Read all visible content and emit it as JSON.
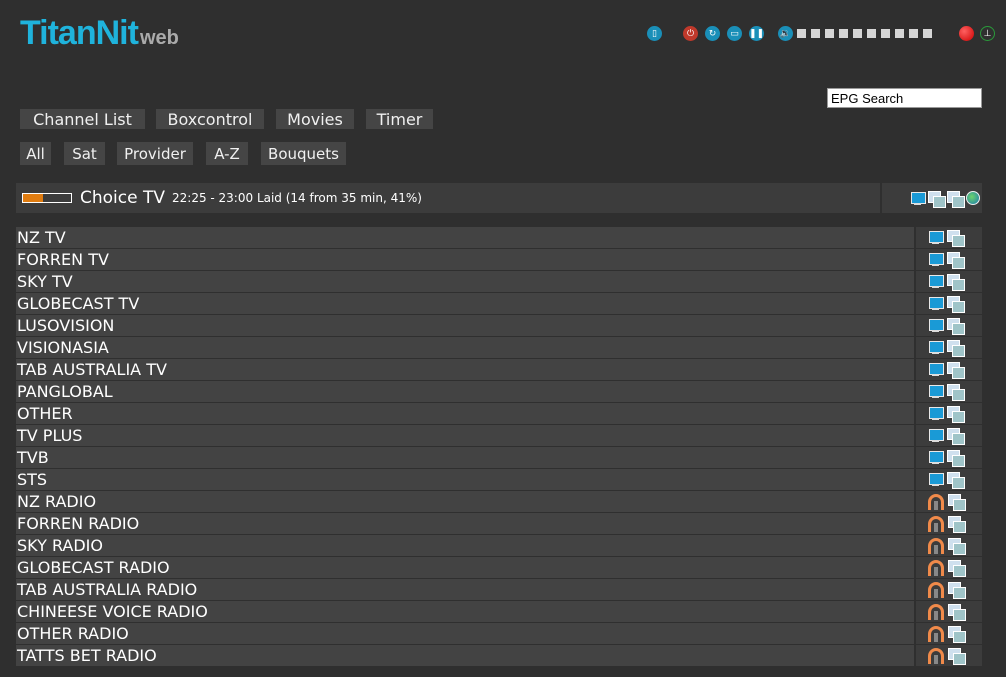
{
  "logo": {
    "main": "TitanNit",
    "suffix": "web"
  },
  "controls": {
    "icons": [
      "remote-icon",
      "power-icon",
      "restart-icon",
      "screen-icon",
      "pause-icon",
      "volume-icon"
    ],
    "volume_steps": 10,
    "record_icon": "record-icon",
    "signal_icon": "signal-icon"
  },
  "epg_search": {
    "value": "EPG Search"
  },
  "nav": {
    "main": [
      "Channel List",
      "Boxcontrol",
      "Movies",
      "Timer"
    ],
    "filters": [
      "All",
      "Sat",
      "Provider",
      "A-Z",
      "Bouquets"
    ]
  },
  "current": {
    "progress_percent": 41,
    "channel": "Choice TV",
    "info": "22:25 - 23:00 Laid (14 from 35 min, 41%)",
    "progress_color": "#e07c10"
  },
  "channels": [
    {
      "name": "NZ TV",
      "type": "tv"
    },
    {
      "name": "FORREN TV",
      "type": "tv"
    },
    {
      "name": "SKY TV",
      "type": "tv"
    },
    {
      "name": "GLOBECAST TV",
      "type": "tv"
    },
    {
      "name": "LUSOVISION",
      "type": "tv"
    },
    {
      "name": "VISIONASIA",
      "type": "tv"
    },
    {
      "name": "TAB AUSTRALIA TV",
      "type": "tv"
    },
    {
      "name": "PANGLOBAL",
      "type": "tv"
    },
    {
      "name": "OTHER",
      "type": "tv"
    },
    {
      "name": "TV PLUS",
      "type": "tv"
    },
    {
      "name": "TVB",
      "type": "tv"
    },
    {
      "name": "STS",
      "type": "tv"
    },
    {
      "name": "NZ RADIO",
      "type": "radio"
    },
    {
      "name": "FORREN RADIO",
      "type": "radio"
    },
    {
      "name": "SKY RADIO",
      "type": "radio"
    },
    {
      "name": "GLOBECAST RADIO",
      "type": "radio"
    },
    {
      "name": "TAB AUSTRALIA RADIO",
      "type": "radio"
    },
    {
      "name": "CHINEESE VOICE RADIO",
      "type": "radio"
    },
    {
      "name": "OTHER RADIO",
      "type": "radio"
    },
    {
      "name": "TATTS BET RADIO",
      "type": "radio"
    }
  ]
}
